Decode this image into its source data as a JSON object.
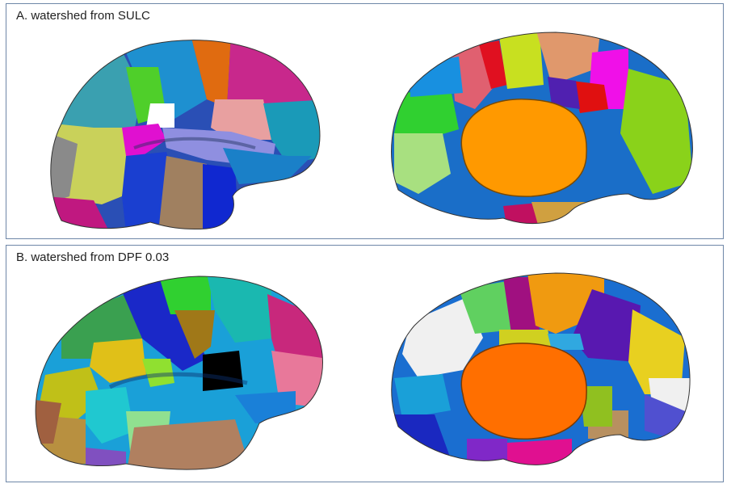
{
  "panels": [
    {
      "label": "A. watershed from SULC"
    },
    {
      "label": "B. watershed from DPF 0.03"
    }
  ],
  "colors": {
    "frame": "#6e87a8",
    "corpus_callosum_a": "#ff9900",
    "corpus_callosum_b": "#ff6f00"
  }
}
